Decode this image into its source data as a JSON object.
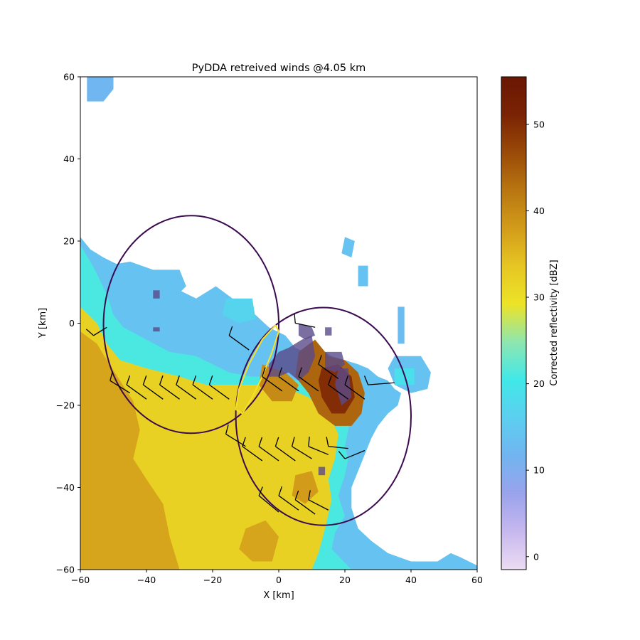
{
  "chart_data": {
    "type": "heatmap",
    "title": "PyDDA retreived winds @4.05 km",
    "xlabel": "X [km]",
    "ylabel": "Y [km]",
    "xlim": [
      -60,
      60
    ],
    "ylim": [
      -60,
      60
    ],
    "x_ticks": [
      "−60",
      "−40",
      "−20",
      "0",
      "20",
      "40",
      "60"
    ],
    "y_ticks": [
      "−60",
      "−40",
      "−20",
      "0",
      "20",
      "40",
      "60"
    ],
    "colorbar": {
      "label": "Corrected reflectivity [dBZ]",
      "range": [
        -1.5,
        55.5
      ],
      "ticks": [
        "0",
        "10",
        "20",
        "30",
        "40",
        "50"
      ],
      "colors": [
        "#ecdcf3",
        "#c7b8ee",
        "#9aa3ec",
        "#72b4f0",
        "#5ccff0",
        "#41e8e8",
        "#8ee6b0",
        "#ece427",
        "#e7c623",
        "#d29c1a",
        "#b97611",
        "#9a4a08",
        "#7a2304",
        "#6a1702"
      ]
    },
    "reflectivity_regions": [
      {
        "dbz": 14,
        "points": [
          [
            -60,
            21
          ],
          [
            -57,
            18
          ],
          [
            -53,
            16
          ],
          [
            -48,
            14
          ],
          [
            -38,
            11
          ],
          [
            -30,
            8
          ],
          [
            -25,
            6
          ],
          [
            -19,
            9
          ],
          [
            -14,
            6
          ],
          [
            -10,
            4
          ],
          [
            -7,
            2
          ],
          [
            -3,
            -1
          ],
          [
            2,
            -3
          ],
          [
            5,
            -6
          ],
          [
            8,
            -7
          ],
          [
            12,
            -6
          ],
          [
            16,
            -8
          ],
          [
            20,
            -9
          ],
          [
            24,
            -10
          ],
          [
            27,
            -11
          ],
          [
            30,
            -13
          ],
          [
            33,
            -14
          ],
          [
            35,
            -16
          ],
          [
            37,
            -17
          ],
          [
            36,
            -20
          ],
          [
            33,
            -22
          ],
          [
            30,
            -25
          ],
          [
            28,
            -28
          ],
          [
            26,
            -32
          ],
          [
            24,
            -36
          ],
          [
            22,
            -40
          ],
          [
            22,
            -45
          ],
          [
            24,
            -50
          ],
          [
            28,
            -53
          ],
          [
            33,
            -56
          ],
          [
            40,
            -58
          ],
          [
            48,
            -58
          ],
          [
            52,
            -56
          ],
          [
            55,
            -57
          ],
          [
            60,
            -59
          ],
          [
            60,
            -60
          ],
          [
            -60,
            -60
          ]
        ]
      },
      {
        "dbz": 21,
        "points": [
          [
            -60,
            19
          ],
          [
            -57,
            15
          ],
          [
            -55,
            12
          ],
          [
            -52,
            7
          ],
          [
            -50,
            2
          ],
          [
            -47,
            -1
          ],
          [
            -40,
            -4
          ],
          [
            -33,
            -7
          ],
          [
            -25,
            -8
          ],
          [
            -20,
            -10
          ],
          [
            -15,
            -12
          ],
          [
            -8,
            -13
          ],
          [
            0,
            -13
          ],
          [
            6,
            -14
          ],
          [
            10,
            -15
          ],
          [
            15,
            -16
          ],
          [
            19,
            -17
          ],
          [
            21,
            -19
          ],
          [
            22,
            -22
          ],
          [
            21,
            -26
          ],
          [
            20,
            -30
          ],
          [
            21,
            -33
          ],
          [
            20,
            -37
          ],
          [
            18,
            -42
          ],
          [
            20,
            -47
          ],
          [
            17,
            -51
          ],
          [
            16,
            -55
          ],
          [
            22,
            -60
          ],
          [
            -60,
            -60
          ]
        ]
      },
      {
        "dbz": 32,
        "points": [
          [
            -60,
            4
          ],
          [
            -55,
            0
          ],
          [
            -52,
            -5
          ],
          [
            -48,
            -9
          ],
          [
            -40,
            -11
          ],
          [
            -30,
            -13
          ],
          [
            -22,
            -15
          ],
          [
            -13,
            -15
          ],
          [
            -5,
            -15
          ],
          [
            3,
            -16
          ],
          [
            9,
            -18
          ],
          [
            15,
            -22
          ],
          [
            18,
            -27
          ],
          [
            17,
            -33
          ],
          [
            15,
            -38
          ],
          [
            16,
            -43
          ],
          [
            14,
            -50
          ],
          [
            12,
            -56
          ],
          [
            10,
            -60
          ],
          [
            -60,
            -60
          ]
        ]
      },
      {
        "dbz": 37,
        "points": [
          [
            -60,
            -2
          ],
          [
            -55,
            -5
          ],
          [
            -52,
            -9
          ],
          [
            -48,
            -14
          ],
          [
            -44,
            -19
          ],
          [
            -42,
            -26
          ],
          [
            -44,
            -33
          ],
          [
            -40,
            -38
          ],
          [
            -35,
            -44
          ],
          [
            -33,
            -52
          ],
          [
            -30,
            -60
          ],
          [
            -60,
            -60
          ]
        ]
      },
      {
        "dbz": 37,
        "points": [
          [
            -10,
            -50
          ],
          [
            -4,
            -48
          ],
          [
            0,
            -52
          ],
          [
            -2,
            -58
          ],
          [
            -8,
            -58
          ],
          [
            -12,
            -55
          ]
        ]
      },
      {
        "dbz": 12,
        "points": [
          [
            -58,
            60
          ],
          [
            -50,
            60
          ],
          [
            -50,
            57
          ],
          [
            -53,
            54
          ],
          [
            -58,
            54
          ]
        ]
      },
      {
        "dbz": 14,
        "points": [
          [
            -52,
            14
          ],
          [
            -45,
            15
          ],
          [
            -38,
            13
          ],
          [
            -30,
            13
          ],
          [
            -28,
            9
          ],
          [
            -33,
            5
          ],
          [
            -40,
            3
          ],
          [
            -47,
            6
          ]
        ]
      },
      {
        "dbz": 17,
        "points": [
          [
            -16,
            6
          ],
          [
            -8,
            6
          ],
          [
            -7,
            1
          ],
          [
            -12,
            0
          ],
          [
            -17,
            2
          ]
        ]
      },
      {
        "dbz": 14,
        "points": [
          [
            20,
            21
          ],
          [
            23,
            20
          ],
          [
            22,
            16
          ],
          [
            19,
            17
          ]
        ]
      },
      {
        "dbz": 14,
        "points": [
          [
            24,
            14
          ],
          [
            27,
            14
          ],
          [
            27,
            9
          ],
          [
            24,
            9
          ]
        ]
      },
      {
        "dbz": 14,
        "points": [
          [
            35,
            -8
          ],
          [
            43,
            -8
          ],
          [
            46,
            -12
          ],
          [
            45,
            -16
          ],
          [
            40,
            -17
          ],
          [
            35,
            -15
          ],
          [
            33,
            -11
          ]
        ]
      },
      {
        "dbz": 19,
        "points": [
          [
            35,
            -11
          ],
          [
            41,
            -11
          ],
          [
            41,
            -15
          ],
          [
            35,
            -15
          ]
        ]
      },
      {
        "dbz": 13,
        "points": [
          [
            36,
            4
          ],
          [
            38,
            4
          ],
          [
            38,
            -5
          ],
          [
            36,
            -5
          ]
        ]
      },
      {
        "dbz": 44,
        "points": [
          [
            6,
            -7
          ],
          [
            11,
            -4
          ],
          [
            15,
            -8
          ],
          [
            20,
            -9
          ],
          [
            24,
            -12
          ],
          [
            26,
            -17
          ],
          [
            25,
            -22
          ],
          [
            22,
            -25
          ],
          [
            17,
            -25
          ],
          [
            12,
            -22
          ],
          [
            9,
            -17
          ],
          [
            5,
            -13
          ]
        ]
      },
      {
        "dbz": 50,
        "points": [
          [
            13,
            -11
          ],
          [
            18,
            -10
          ],
          [
            22,
            -13
          ],
          [
            23,
            -18
          ],
          [
            20,
            -22
          ],
          [
            16,
            -22
          ],
          [
            13,
            -18
          ],
          [
            12,
            -14
          ]
        ]
      },
      {
        "dbz": 40,
        "points": [
          [
            -5,
            -10
          ],
          [
            2,
            -12
          ],
          [
            6,
            -15
          ],
          [
            4,
            -19
          ],
          [
            -2,
            -19
          ],
          [
            -6,
            -15
          ]
        ]
      },
      {
        "dbz": 38,
        "points": [
          [
            5,
            -37
          ],
          [
            10,
            -36
          ],
          [
            12,
            -41
          ],
          [
            8,
            -44
          ],
          [
            4,
            -42
          ]
        ]
      }
    ],
    "updraft_cores": [
      [
        [
          -3,
          -10
        ],
        [
          0,
          -7
        ],
        [
          3,
          -6
        ],
        [
          7,
          -4
        ],
        [
          10,
          -3
        ],
        [
          11,
          -8
        ],
        [
          9,
          -12
        ],
        [
          6,
          -14
        ],
        [
          3,
          -12
        ],
        [
          0,
          -13
        ],
        [
          -3,
          -13
        ]
      ],
      [
        [
          6,
          0
        ],
        [
          10,
          -1
        ],
        [
          11,
          -3
        ],
        [
          8,
          -4
        ],
        [
          6,
          -3
        ]
      ],
      [
        [
          14,
          -7
        ],
        [
          19,
          -7
        ],
        [
          20,
          -10
        ],
        [
          17,
          -12
        ],
        [
          14,
          -11
        ]
      ],
      [
        [
          18,
          -11
        ],
        [
          21,
          -11
        ],
        [
          22,
          -18
        ],
        [
          19,
          -20
        ],
        [
          17,
          -15
        ]
      ],
      [
        [
          14,
          -1
        ],
        [
          16,
          -1
        ],
        [
          16,
          -3
        ],
        [
          14,
          -3
        ]
      ],
      [
        [
          -38,
          8
        ],
        [
          -36,
          8
        ],
        [
          -36,
          6
        ],
        [
          -38,
          6
        ]
      ],
      [
        [
          -38,
          -1
        ],
        [
          -36,
          -1
        ],
        [
          -36,
          -2
        ],
        [
          -38,
          -2
        ]
      ],
      [
        [
          12,
          -35
        ],
        [
          14,
          -35
        ],
        [
          14,
          -37
        ],
        [
          12,
          -37
        ]
      ]
    ],
    "radar_lobes": [
      {
        "name": "",
        "cx": -26.5,
        "cy": -0.3,
        "rx": 26.5,
        "ry": 26.5
      },
      {
        "name": "",
        "cx": 13.5,
        "cy": -22.7,
        "rx": 26.5,
        "ry": 26.5
      }
    ],
    "baseline_lobe": {
      "points": [
        [
          -1,
          -0.5
        ],
        [
          -5,
          -4
        ],
        [
          -9,
          -10
        ],
        [
          -12,
          -16
        ],
        [
          -13,
          -21
        ],
        [
          -11,
          -22
        ],
        [
          -8,
          -18
        ],
        [
          -5,
          -13
        ],
        [
          -2,
          -7
        ],
        [
          0,
          -2
        ]
      ]
    },
    "wind_barbs": [
      {
        "x": -56,
        "y": -3,
        "u": 4.0,
        "v": 2.0
      },
      {
        "x": -51,
        "y": -14,
        "u": 6.0,
        "v": -3.0
      },
      {
        "x": -46,
        "y": -15,
        "u": 6.0,
        "v": -3.5
      },
      {
        "x": -41,
        "y": -15,
        "u": 6.0,
        "v": -3.5
      },
      {
        "x": -36,
        "y": -15,
        "u": 6.0,
        "v": -3.5
      },
      {
        "x": -31,
        "y": -15,
        "u": 6.0,
        "v": -3.5
      },
      {
        "x": -26,
        "y": -15,
        "u": 6.0,
        "v": -3.5
      },
      {
        "x": -21,
        "y": -15,
        "u": 6.0,
        "v": -3.5
      },
      {
        "x": -15,
        "y": -3,
        "u": 6.0,
        "v": -3.5
      },
      {
        "x": -5,
        "y": -13,
        "u": 6.0,
        "v": -3.5
      },
      {
        "x": 0,
        "y": -13,
        "u": 6.0,
        "v": -3.5
      },
      {
        "x": 6,
        "y": -13,
        "u": 6.0,
        "v": -3.5
      },
      {
        "x": 15,
        "y": -15,
        "u": 6.0,
        "v": -3.5
      },
      {
        "x": 20,
        "y": -15,
        "u": 6.0,
        "v": -3.5
      },
      {
        "x": 5,
        "y": 0,
        "u": 6.0,
        "v": -1.0
      },
      {
        "x": 12,
        "y": -10,
        "u": 6.0,
        "v": -3.5
      },
      {
        "x": 27,
        "y": -15,
        "u": 8.0,
        "v": 0.5
      },
      {
        "x": -16,
        "y": -27,
        "u": 6.0,
        "v": -3.0
      },
      {
        "x": -11,
        "y": -30,
        "u": 6.0,
        "v": -3.5
      },
      {
        "x": -6,
        "y": -30,
        "u": 6.0,
        "v": -3.5
      },
      {
        "x": -1,
        "y": -30,
        "u": 6.0,
        "v": -3.5
      },
      {
        "x": 4,
        "y": -30,
        "u": 6.0,
        "v": -3.0
      },
      {
        "x": 9,
        "y": -30,
        "u": 6.0,
        "v": -2.0
      },
      {
        "x": 15,
        "y": -30,
        "u": 6.0,
        "v": -0.5
      },
      {
        "x": 20,
        "y": -33,
        "u": 6.0,
        "v": 2.0
      },
      {
        "x": -6,
        "y": -42,
        "u": 6.0,
        "v": -4.0
      },
      {
        "x": 0,
        "y": -42,
        "u": 6.0,
        "v": -3.5
      },
      {
        "x": 5,
        "y": -43,
        "u": 6.0,
        "v": -3.5
      },
      {
        "x": 9,
        "y": -43,
        "u": 6.0,
        "v": -2.5
      }
    ],
    "colors": {
      "lobe_outline": "#3b0a4f",
      "baseline_outline": "#f5e12a",
      "updraft_fill": "#5a4a8a",
      "barb_color": "#000000"
    }
  }
}
